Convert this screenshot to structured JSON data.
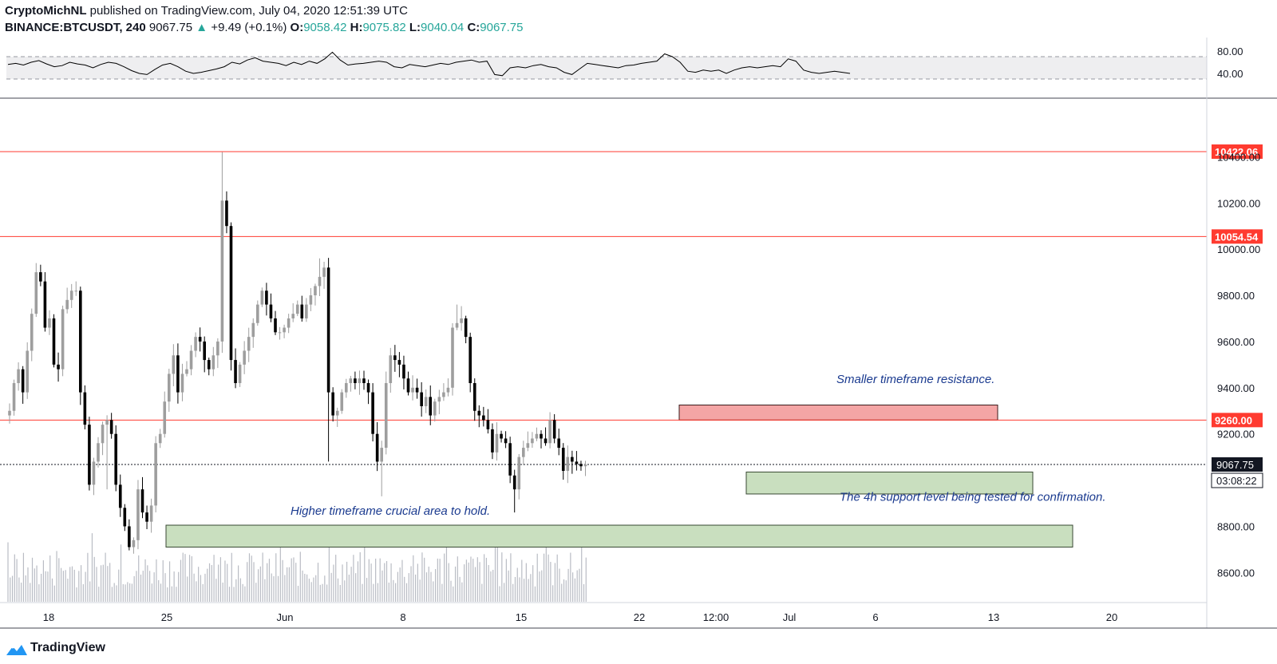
{
  "header": {
    "author": "CryptoMichNL",
    "published": "published on TradingView.com, July 04, 2020 12:51:39 UTC",
    "symbol": "BINANCE:BTCUSDT, 240",
    "last": "9067.75",
    "change_arrow": "▲",
    "change": "+9.49 (+0.1%)",
    "o_label": "O:",
    "o": "9058.42",
    "h_label": "H:",
    "h": "9075.82",
    "l_label": "L:",
    "l": "9040.04",
    "c_label": "C:",
    "c": "9067.75"
  },
  "footer": {
    "brand": "TradingView"
  },
  "colors": {
    "bull": "#9e9e9e",
    "bear": "#000000",
    "hline": "#ff3b30",
    "resistance_zone": "#f4a5a5",
    "support_zone": "#c9dfbf",
    "annotation": "#1a3a8f",
    "price_tag": "#131722"
  },
  "chart_data": {
    "type": "candlestick",
    "symbol": "BTCUSDT",
    "timeframe": "240",
    "ylim": [
      8470,
      10650
    ],
    "x_ticks": [
      "18",
      "25",
      "Jun",
      "8",
      "15",
      "22",
      "12:00",
      "Jul",
      "6",
      "13",
      "20"
    ],
    "y_ticks": [
      "10400.00",
      "10200.00",
      "10000.00",
      "9800.00",
      "9600.00",
      "9400.00",
      "9200.00",
      "8800.00",
      "8600.00"
    ],
    "price_levels": [
      {
        "value": 10422.06,
        "label": "10422.06"
      },
      {
        "value": 10054.54,
        "label": "10054.54"
      },
      {
        "value": 9260.0,
        "label": "9260.00"
      }
    ],
    "current_price": {
      "value": 9067.75,
      "label": "9067.75",
      "countdown": "03:08:22"
    },
    "zones": [
      {
        "kind": "resistance",
        "low": 9260,
        "high": 9325,
        "text": "Smaller timeframe resistance."
      },
      {
        "kind": "support",
        "low": 8940,
        "high": 9035,
        "text": "The 4h support level being tested for confirmation."
      },
      {
        "kind": "support",
        "low": 8710,
        "high": 8805,
        "text": "Higher timeframe crucial area to hold."
      }
    ],
    "rsi": {
      "ticks": [
        "80.00",
        "40.00"
      ],
      "upper": 70,
      "lower": 30
    },
    "path_close": [
      9300,
      9420,
      9480,
      9380,
      9560,
      9720,
      9900,
      9860,
      9660,
      9700,
      9500,
      9480,
      9740,
      9780,
      9820,
      9820,
      9380,
      9240,
      8980,
      9080,
      9160,
      9240,
      9260,
      9200,
      8980,
      8880,
      8800,
      8710,
      8740,
      8960,
      8860,
      8820,
      8890,
      9160,
      9200,
      9340,
      9460,
      9540,
      9380,
      9460,
      9480,
      9560,
      9620,
      9600,
      9520,
      9480,
      9540,
      9600,
      10210,
      10100,
      9520,
      9420,
      9500,
      9560,
      9620,
      9680,
      9760,
      9820,
      9760,
      9700,
      9640,
      9640,
      9660,
      9700,
      9720,
      9760,
      9700,
      9760,
      9800,
      9840,
      9880,
      9920,
      9380,
      9280,
      9300,
      9380,
      9420,
      9440,
      9420,
      9440,
      9420,
      9380,
      9200,
      9080,
      9140,
      9420,
      9540,
      9520,
      9500,
      9440,
      9380,
      9400,
      9380,
      9320,
      9360,
      9280,
      9340,
      9360,
      9380,
      9400,
      9660,
      9680,
      9700,
      9620,
      9420,
      9300,
      9280,
      9260,
      9220,
      9120,
      9200,
      9180,
      9160,
      9020,
      8960,
      9100,
      9140,
      9160,
      9180,
      9200,
      9180,
      9160,
      9260,
      9180,
      9140,
      9040,
      9100,
      9080,
      9070,
      9060,
      9067.75
    ],
    "rsi_values": [
      56,
      58,
      55,
      60,
      63,
      57,
      52,
      54,
      60,
      57,
      55,
      50,
      56,
      60,
      58,
      52,
      45,
      40,
      38,
      47,
      55,
      58,
      52,
      44,
      40,
      42,
      45,
      48,
      52,
      60,
      57,
      64,
      68,
      62,
      60,
      58,
      54,
      60,
      56,
      62,
      58,
      66,
      78,
      64,
      55,
      57,
      58,
      60,
      62,
      60,
      52,
      50,
      56,
      54,
      52,
      55,
      58,
      56,
      60,
      62,
      64,
      60,
      62,
      38,
      36,
      50,
      52,
      50,
      54,
      56,
      52,
      50,
      42,
      38,
      48,
      58,
      56,
      54,
      52,
      50,
      54,
      55,
      58,
      60,
      62,
      75,
      70,
      60,
      44,
      42,
      46,
      44,
      46,
      40,
      46,
      50,
      52,
      50,
      52,
      54,
      52,
      66,
      62,
      46,
      42,
      40,
      42,
      44,
      42,
      40
    ]
  }
}
